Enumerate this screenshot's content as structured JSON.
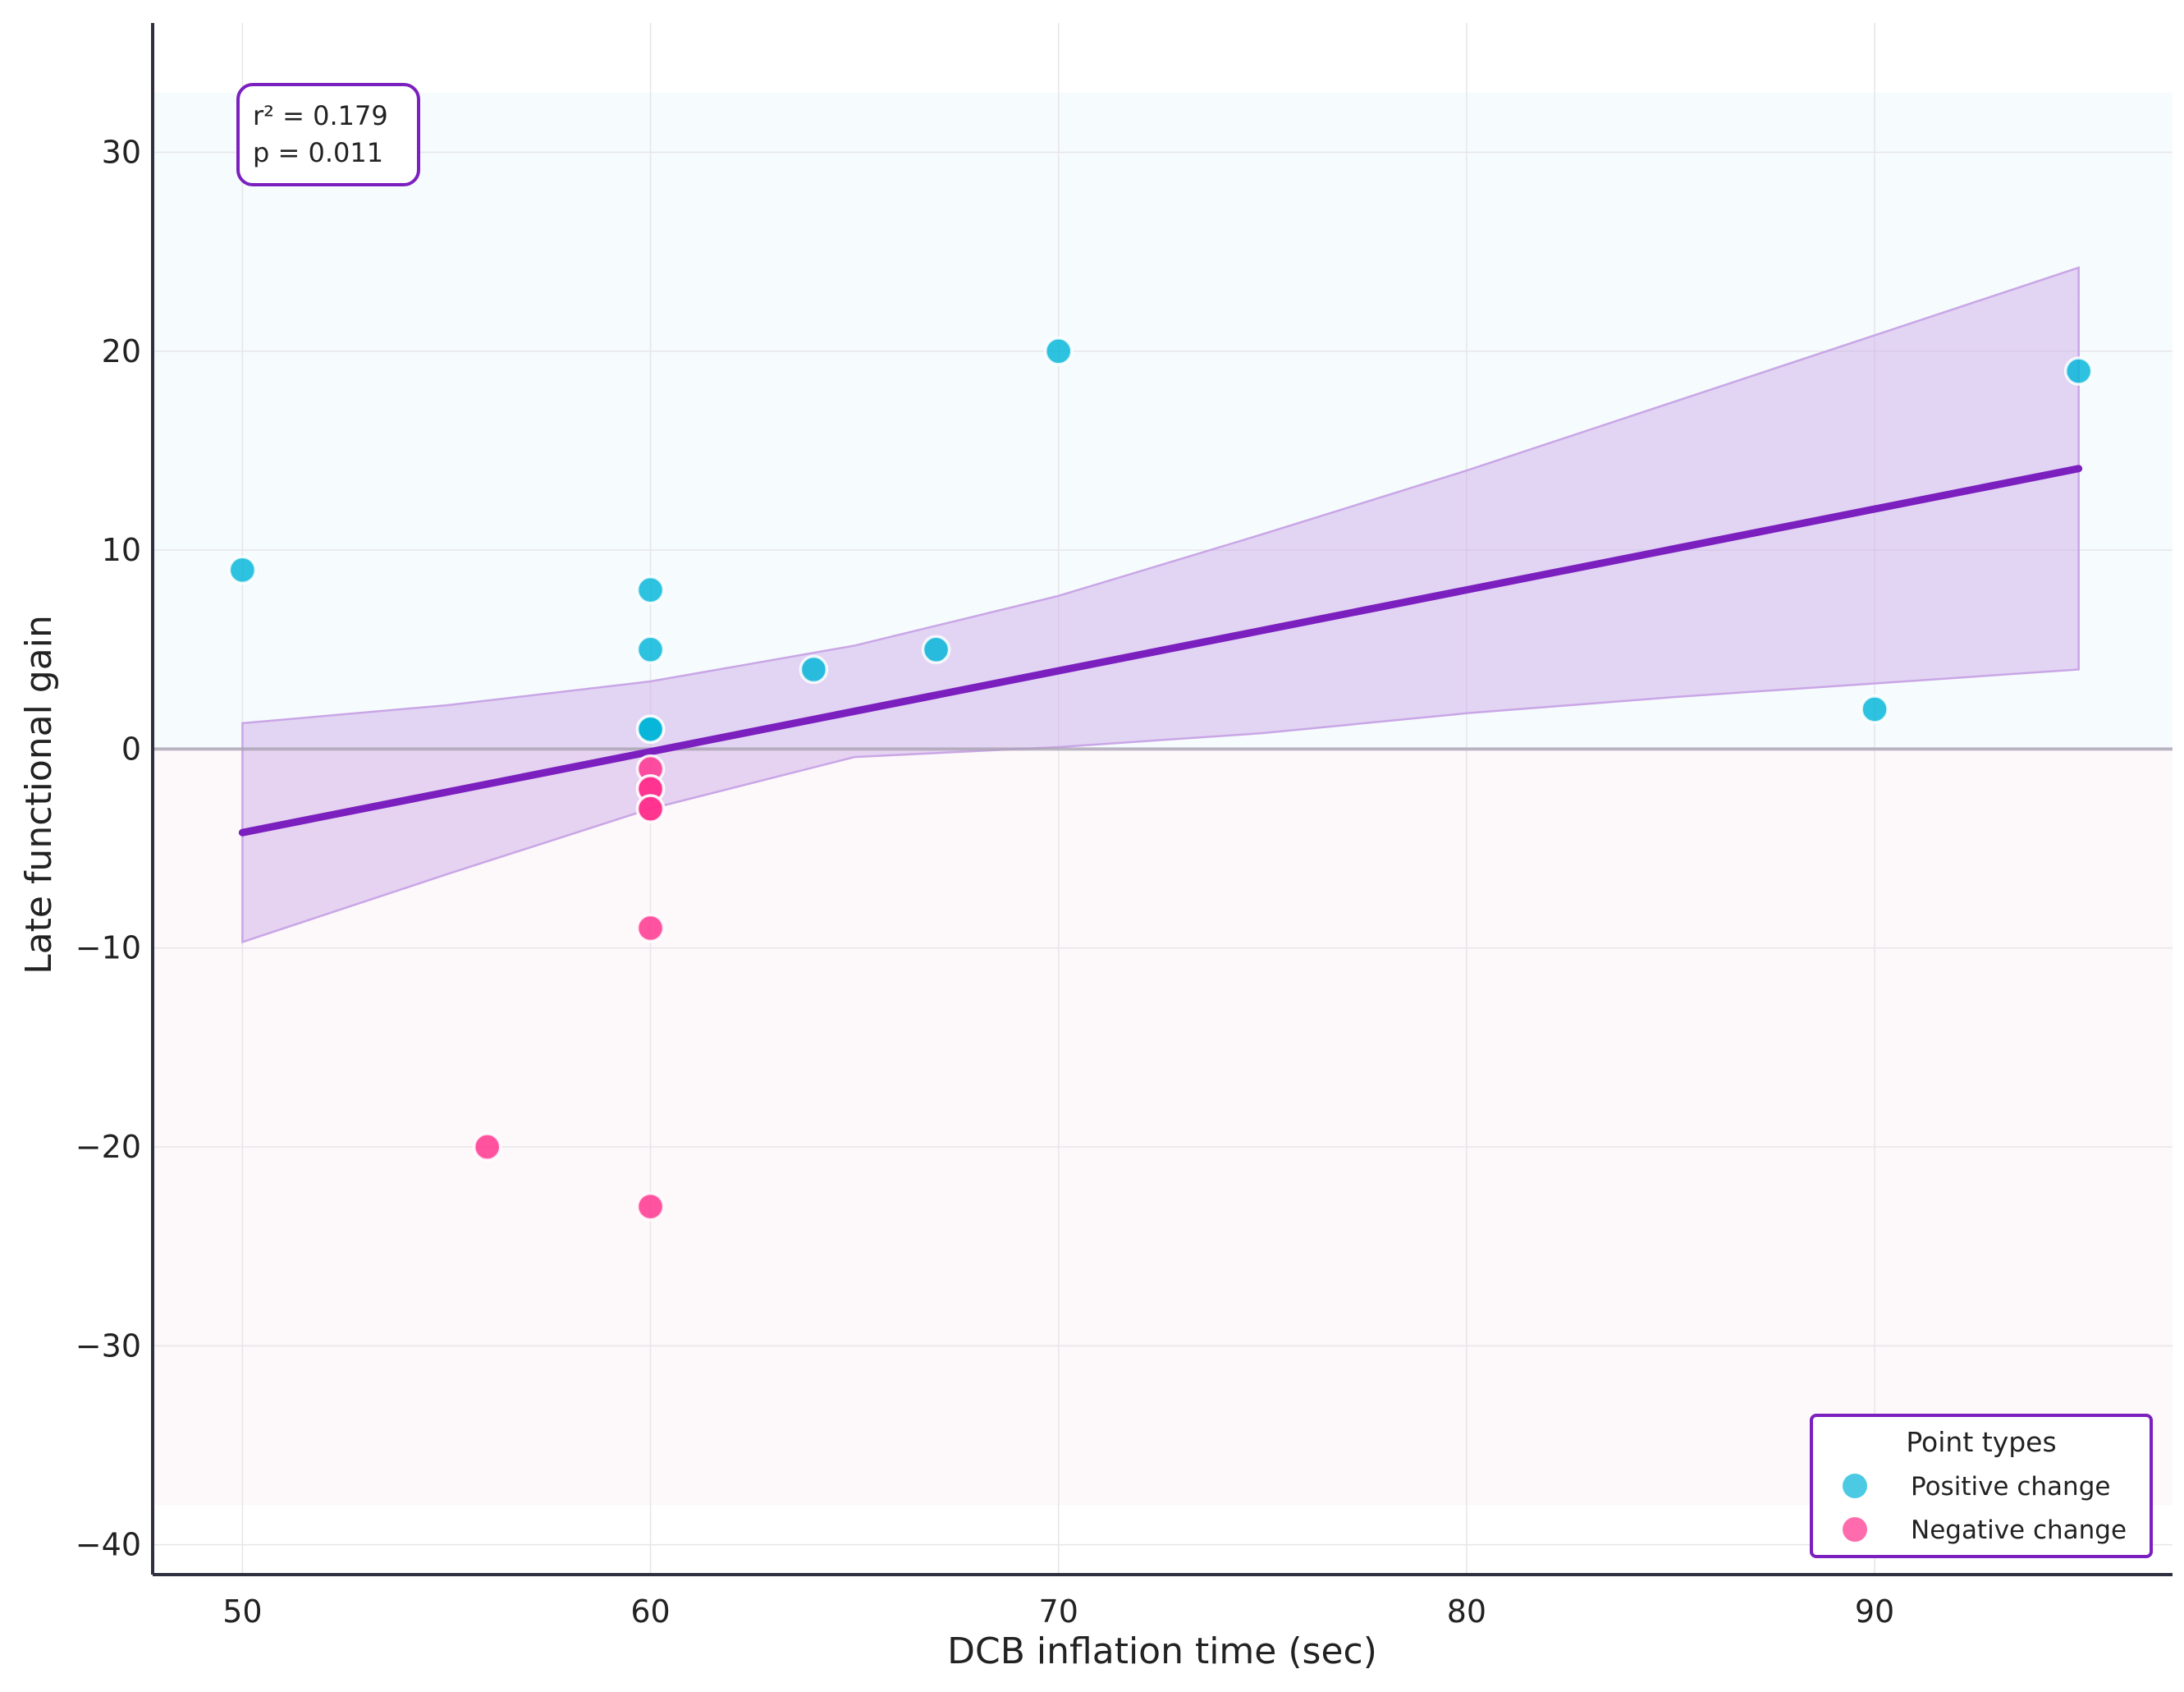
{
  "chart_data": {
    "type": "scatter",
    "xlabel": "DCB inflation time (sec)",
    "ylabel": "Late functional gain",
    "xlim": [
      47.8,
      97.3
    ],
    "ylim": [
      -41.5,
      36.5
    ],
    "x_ticks": [
      50,
      60,
      70,
      80,
      90
    ],
    "y_ticks": [
      -40,
      -30,
      -20,
      -10,
      0,
      10,
      20,
      30
    ],
    "grid": true,
    "zero_line": 0,
    "background_regions": [
      {
        "name": "positive-region",
        "y_range": [
          0,
          33
        ],
        "x_range": [
          47.8,
          97.3
        ],
        "color": "#f6fbfd"
      },
      {
        "name": "negative-region",
        "y_range": [
          -38,
          0
        ],
        "x_range": [
          47.8,
          97.3
        ],
        "color": "#fdf8fa"
      }
    ],
    "series": [
      {
        "name": "Positive change",
        "color": "#00b4d8",
        "points": [
          [
            50,
            9
          ],
          [
            60,
            8
          ],
          [
            60,
            5
          ],
          [
            60,
            1
          ],
          [
            60,
            1
          ],
          [
            64,
            4
          ],
          [
            67,
            5
          ],
          [
            70,
            20
          ],
          [
            90,
            2
          ],
          [
            95,
            19
          ]
        ]
      },
      {
        "name": "Negative change",
        "color": "#ff2e8c",
        "points": [
          [
            56,
            -20
          ],
          [
            60,
            -23
          ],
          [
            60,
            -9
          ],
          [
            60,
            -1
          ],
          [
            60,
            -2
          ],
          [
            60,
            -2
          ],
          [
            60,
            -3
          ],
          [
            60,
            -3
          ]
        ]
      }
    ],
    "regression": {
      "color": "#7b1fbf",
      "band_color": "#c9a6e6",
      "x_range": [
        50,
        95
      ],
      "line": [
        [
          50,
          -4.2
        ],
        [
          95,
          14.1
        ]
      ],
      "band_upper": [
        [
          50,
          1.3
        ],
        [
          55,
          2.2
        ],
        [
          60,
          3.4
        ],
        [
          65,
          5.2
        ],
        [
          70,
          7.7
        ],
        [
          75,
          10.8
        ],
        [
          80,
          14.0
        ],
        [
          85,
          17.4
        ],
        [
          90,
          20.8
        ],
        [
          95,
          24.2
        ]
      ],
      "band_lower": [
        [
          50,
          -9.7
        ],
        [
          55,
          -6.3
        ],
        [
          60,
          -3.0
        ],
        [
          65,
          -0.4
        ],
        [
          70,
          0.1
        ],
        [
          75,
          0.8
        ],
        [
          80,
          1.8
        ],
        [
          85,
          2.6
        ],
        [
          90,
          3.3
        ],
        [
          95,
          4.0
        ]
      ]
    },
    "annotation": {
      "r2": "r² = 0.179",
      "p": "p = 0.011",
      "border_color": "#7b1fbf"
    },
    "legend": {
      "title": "Point types",
      "placement": "bottom-right",
      "border_color": "#7b1fbf"
    }
  }
}
